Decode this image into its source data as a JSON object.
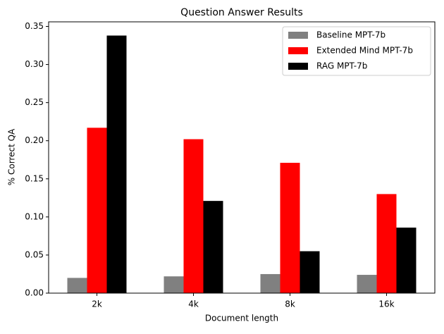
{
  "chart_data": {
    "type": "bar",
    "title": "Question Answer Results",
    "x_label": "Document length",
    "y_label": "% Correct QA",
    "categories": [
      "2k",
      "4k",
      "8k",
      "16k"
    ],
    "series": [
      {
        "name": "Baseline MPT-7b",
        "color": "#808080",
        "values": [
          0.02,
          0.022,
          0.025,
          0.024
        ]
      },
      {
        "name": "Extended Mind MPT-7b",
        "color": "#ff0000",
        "values": [
          0.217,
          0.202,
          0.171,
          0.13
        ]
      },
      {
        "name": "RAG MPT-7b",
        "color": "#000000",
        "values": [
          0.338,
          0.121,
          0.055,
          0.086
        ]
      }
    ],
    "ylim": [
      0,
      0.356
    ],
    "yticks": [
      {
        "value": 0,
        "label": "0.00"
      },
      {
        "value": 0.05,
        "label": "0.05"
      },
      {
        "value": 0.1,
        "label": "0.10"
      },
      {
        "value": 0.15,
        "label": "0.15"
      },
      {
        "value": 0.2,
        "label": "0.20"
      },
      {
        "value": 0.25,
        "label": "0.25"
      },
      {
        "value": 0.3,
        "label": "0.30"
      },
      {
        "value": 0.35,
        "label": "0.35"
      }
    ],
    "legend": "upper-right",
    "grid": false
  }
}
